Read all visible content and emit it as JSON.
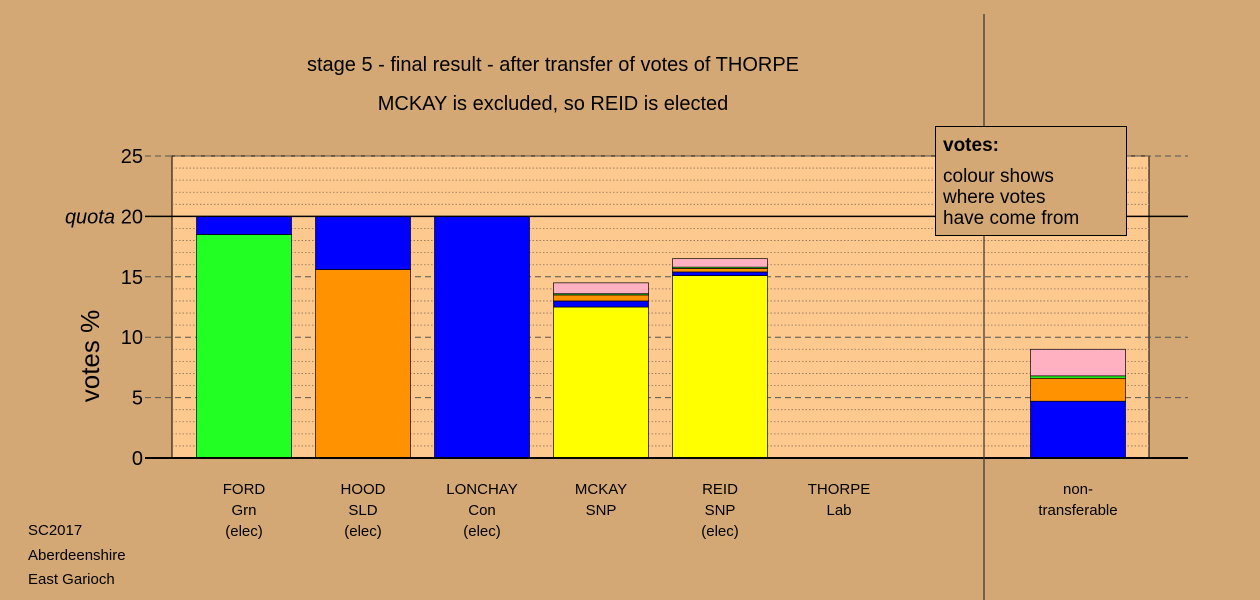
{
  "titles": {
    "line1": "stage 5 - final result - after transfer of votes of THORPE",
    "line2": "MCKAY is excluded, so REID is elected"
  },
  "legend": {
    "title": "votes:",
    "body": "colour shows\nwhere votes\nhave come from"
  },
  "footer": {
    "line1": "SC2017",
    "line2": "Aberdeenshire",
    "line3": "East Garioch"
  },
  "colors": {
    "background": "#d3a874",
    "plot_area": "#fdc98f",
    "Grn": "#22ff22",
    "SLD": "#ff9200",
    "Con": "#0000ff",
    "SNP": "#ffff00",
    "Lab": "#ffb1c2"
  },
  "chart_data": {
    "type": "bar",
    "stacked": true,
    "ylabel": "votes %",
    "ylim": [
      0,
      25
    ],
    "yticks": [
      0,
      5,
      10,
      15,
      20,
      25
    ],
    "quota": {
      "value": 20,
      "label": "quota"
    },
    "grid": true,
    "legend_placement": "top-right",
    "candidates": [
      {
        "name": "FORD",
        "party": "Grn",
        "status": "(elec)",
        "segments": [
          {
            "from": "Grn",
            "value": 18.5
          },
          {
            "from": "Con",
            "value": 1.5
          }
        ]
      },
      {
        "name": "HOOD",
        "party": "SLD",
        "status": "(elec)",
        "segments": [
          {
            "from": "SLD",
            "value": 15.6
          },
          {
            "from": "Con",
            "value": 4.4
          }
        ]
      },
      {
        "name": "LONCHAY",
        "party": "Con",
        "status": "(elec)",
        "segments": [
          {
            "from": "Con",
            "value": 20.0
          }
        ]
      },
      {
        "name": "MCKAY",
        "party": "SNP",
        "status": "",
        "segments": [
          {
            "from": "SNP",
            "value": 12.5
          },
          {
            "from": "Con",
            "value": 0.5
          },
          {
            "from": "SLD",
            "value": 0.5
          },
          {
            "from": "Grn",
            "value": 0.1
          },
          {
            "from": "Lab",
            "value": 0.9
          }
        ]
      },
      {
        "name": "REID",
        "party": "SNP",
        "status": "(elec)",
        "segments": [
          {
            "from": "SNP",
            "value": 15.1
          },
          {
            "from": "Con",
            "value": 0.3
          },
          {
            "from": "SLD",
            "value": 0.3
          },
          {
            "from": "Grn",
            "value": 0.1
          },
          {
            "from": "Lab",
            "value": 0.7
          }
        ]
      },
      {
        "name": "THORPE",
        "party": "Lab",
        "status": "",
        "segments": []
      },
      {
        "name": "non-",
        "party": "transferable",
        "status": "",
        "segments": [
          {
            "from": "Con",
            "value": 4.7
          },
          {
            "from": "SLD",
            "value": 1.9
          },
          {
            "from": "Grn",
            "value": 0.2
          },
          {
            "from": "Lab",
            "value": 2.2
          }
        ]
      }
    ]
  }
}
